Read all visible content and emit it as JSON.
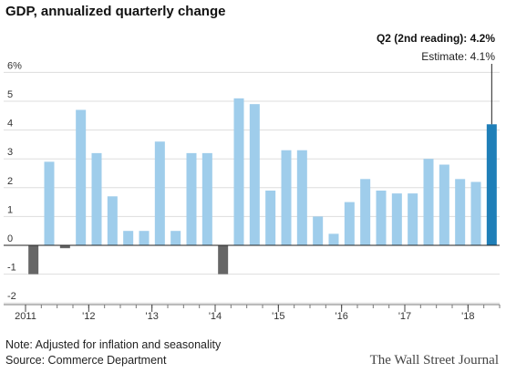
{
  "chart_data": {
    "type": "bar",
    "title": "GDP, annualized quarterly change",
    "y_ticks": [
      {
        "value": 6,
        "label": "6%"
      },
      {
        "value": 5,
        "label": "5"
      },
      {
        "value": 4,
        "label": "4"
      },
      {
        "value": 3,
        "label": "3"
      },
      {
        "value": 2,
        "label": "2"
      },
      {
        "value": 1,
        "label": "1"
      },
      {
        "value": 0,
        "label": "0"
      },
      {
        "value": -1,
        "label": "-1"
      },
      {
        "value": -2,
        "label": "-2"
      }
    ],
    "ylim": [
      -2,
      6
    ],
    "grid": true,
    "x_tick_labels": [
      {
        "index": 0,
        "label": "2011"
      },
      {
        "index": 4,
        "label": "'12"
      },
      {
        "index": 8,
        "label": "'13"
      },
      {
        "index": 12,
        "label": "'14"
      },
      {
        "index": 16,
        "label": "'15"
      },
      {
        "index": 20,
        "label": "'16"
      },
      {
        "index": 24,
        "label": "'17"
      },
      {
        "index": 28,
        "label": "'18"
      }
    ],
    "categories": [
      "2011 Q1",
      "2011 Q2",
      "2011 Q3",
      "2011 Q4",
      "2012 Q1",
      "2012 Q2",
      "2012 Q3",
      "2012 Q4",
      "2013 Q1",
      "2013 Q2",
      "2013 Q3",
      "2013 Q4",
      "2014 Q1",
      "2014 Q2",
      "2014 Q3",
      "2014 Q4",
      "2015 Q1",
      "2015 Q2",
      "2015 Q3",
      "2015 Q4",
      "2016 Q1",
      "2016 Q2",
      "2016 Q3",
      "2016 Q4",
      "2017 Q1",
      "2017 Q2",
      "2017 Q3",
      "2017 Q4",
      "2018 Q1",
      "2018 Q2"
    ],
    "values": [
      -1.0,
      2.9,
      -0.1,
      4.7,
      3.2,
      1.7,
      0.5,
      0.5,
      3.6,
      0.5,
      3.2,
      3.2,
      -1.0,
      5.1,
      4.9,
      1.9,
      3.3,
      3.3,
      1.0,
      0.4,
      1.5,
      2.3,
      1.9,
      1.8,
      1.8,
      3.0,
      2.8,
      2.3,
      2.2,
      4.2
    ],
    "colors": {
      "positive": "#9fcdeb",
      "negative": "#666666",
      "highlight": "#1f7fb8",
      "grid": "#dddddd",
      "axis": "#777777"
    },
    "annotation": {
      "label_prefix": "Q2 (2nd reading): ",
      "label_value": "4.2%",
      "estimate": "Estimate: 4.1%"
    }
  },
  "footer": {
    "note": "Note: Adjusted for inflation and seasonality",
    "source": "Source: Commerce Department",
    "brand": "The Wall Street Journal"
  }
}
